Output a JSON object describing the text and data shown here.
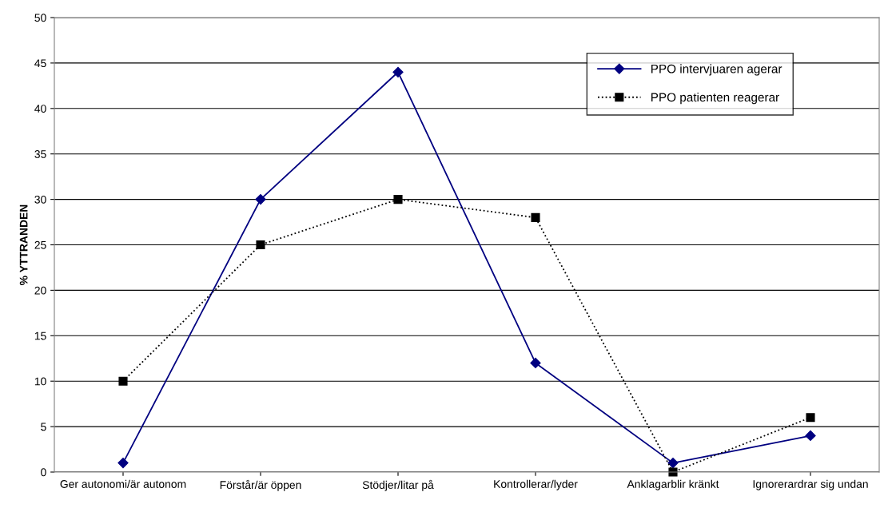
{
  "chart_data": {
    "type": "line",
    "ylabel": "% YTTRANDEN",
    "categories": [
      "Ger autonomi/är autonom",
      "Förstår/är öppen",
      "Stödjer/litar på",
      "Kontrollerar/lyder",
      "Anklagarblir kränkt",
      "Ignorerardrar sig undan"
    ],
    "series": [
      {
        "name": "PPO intervjuaren agerar",
        "color": "#000080",
        "values": [
          1,
          30,
          44,
          12,
          1,
          4
        ],
        "marker": "diamond",
        "line_style": "solid"
      },
      {
        "name": "PPO patienten reagerar",
        "color": "#000000",
        "values": [
          10,
          25,
          30,
          28,
          0,
          6
        ],
        "marker": "square",
        "line_style": "dotted"
      }
    ],
    "ylim": [
      0,
      50
    ],
    "yticks": [
      0,
      5,
      10,
      15,
      20,
      25,
      30,
      35,
      40,
      45,
      50
    ],
    "grid": "y",
    "legend": "top right"
  }
}
